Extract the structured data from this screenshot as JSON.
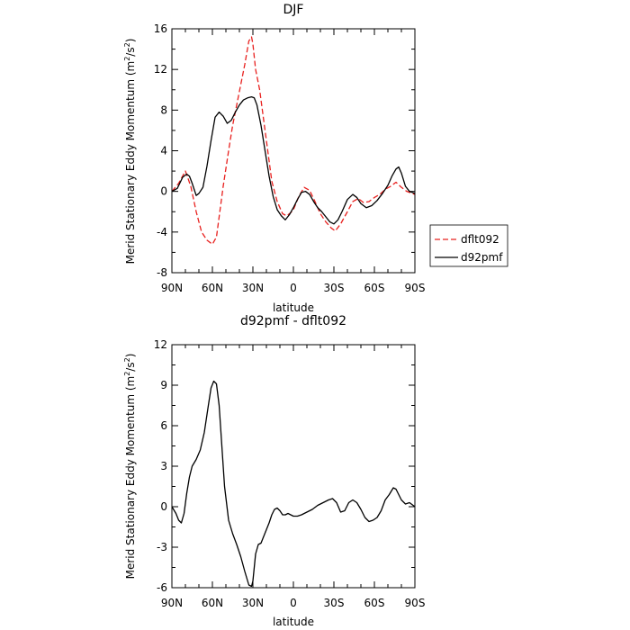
{
  "chart_data": [
    {
      "type": "line",
      "title": "DJF",
      "xlabel": "latitude",
      "ylabel": "Merid Stationary Eddy Momentum (m²/s²)",
      "ylabel_text": "Merid Stationary Eddy Momentum",
      "ylabel_unit_open": "(m",
      "ylabel_unit_sup1": "2",
      "ylabel_unit_mid": "/s",
      "ylabel_unit_sup2": "2",
      "ylabel_unit_close": ")",
      "xlim": [
        90,
        -90
      ],
      "ylim": [
        -8,
        16
      ],
      "xticks": [
        90,
        60,
        30,
        0,
        -30,
        -60,
        -90
      ],
      "xtick_labels": [
        "90N",
        "60N",
        "30N",
        "0",
        "30S",
        "60S",
        "90S"
      ],
      "yticks": [
        -8,
        -4,
        0,
        4,
        8,
        12,
        16
      ],
      "ytick_labels": [
        "-8",
        "-4",
        "0",
        "4",
        "8",
        "12",
        "16"
      ],
      "legend": "outside-right",
      "grid": false,
      "series": [
        {
          "name": "dflt092",
          "color": "#e8201e",
          "dash": "dashed",
          "x": [
            90,
            85,
            80,
            76,
            72,
            68,
            64,
            60,
            57,
            55,
            52,
            48,
            45,
            42,
            39,
            36,
            33,
            31,
            30,
            28,
            25,
            22,
            19,
            16,
            12,
            8,
            5,
            2,
            0,
            -4,
            -8,
            -12,
            -16,
            -20,
            -24,
            -28,
            -31,
            -35,
            -40,
            -44,
            -48,
            -52,
            -56,
            -60,
            -64,
            -68,
            -72,
            -76,
            -80,
            -84,
            -88,
            -90
          ],
          "y": [
            0,
            0.8,
            2,
            0.5,
            -2,
            -4,
            -4.8,
            -5.2,
            -4.5,
            -2.5,
            0.5,
            4,
            6.5,
            8.5,
            10.5,
            12.5,
            14.8,
            15.2,
            14.5,
            12,
            10,
            7,
            4,
            1,
            -1,
            -2.2,
            -2.4,
            -2.1,
            -1.8,
            -0.5,
            0.4,
            0.1,
            -1,
            -2.2,
            -3,
            -3.6,
            -3.9,
            -3.2,
            -2,
            -1,
            -0.7,
            -1.1,
            -1,
            -0.6,
            -0.3,
            0.2,
            0.5,
            0.9,
            0.4,
            0,
            -0.2,
            -0.3
          ]
        },
        {
          "name": "d92pmf",
          "color": "#000000",
          "dash": "solid",
          "x": [
            90,
            86,
            82,
            79,
            77,
            75,
            72,
            70,
            67,
            64,
            61,
            58,
            55,
            52,
            49,
            46,
            43,
            40,
            37,
            34,
            31,
            29,
            27,
            24,
            21,
            18,
            15,
            12,
            9,
            6,
            3,
            0,
            -3,
            -6,
            -9,
            -12,
            -15,
            -18,
            -21,
            -24,
            -27,
            -30,
            -33,
            -36,
            -40,
            -44,
            -47,
            -50,
            -54,
            -58,
            -62,
            -66,
            -70,
            -73,
            -76,
            -78,
            -80,
            -83,
            -86,
            -90
          ],
          "y": [
            0,
            0.3,
            1.4,
            1.7,
            1.5,
            0.8,
            -0.4,
            -0.2,
            0.4,
            2.5,
            5,
            7.3,
            7.8,
            7.4,
            6.7,
            7,
            7.8,
            8.5,
            9,
            9.2,
            9.3,
            9.2,
            8.5,
            6.5,
            4,
            1.5,
            -0.5,
            -1.8,
            -2.4,
            -2.8,
            -2.3,
            -1.6,
            -0.8,
            -0.1,
            0,
            -0.3,
            -1,
            -1.6,
            -2,
            -2.5,
            -3,
            -3.2,
            -2.8,
            -2,
            -0.8,
            -0.3,
            -0.6,
            -1.2,
            -1.6,
            -1.4,
            -0.9,
            -0.2,
            0.6,
            1.5,
            2.2,
            2.4,
            1.8,
            0.5,
            0,
            -0.2
          ]
        }
      ]
    },
    {
      "type": "line",
      "title": "d92pmf - dflt092",
      "xlabel": "latitude",
      "ylabel": "Merid Stationary Eddy Momentum (m²/s²)",
      "ylabel_text": "Merid Stationary Eddy Momentum",
      "ylabel_unit_open": "(m",
      "ylabel_unit_sup1": "2",
      "ylabel_unit_mid": "/s",
      "ylabel_unit_sup2": "2",
      "ylabel_unit_close": ")",
      "xlim": [
        90,
        -90
      ],
      "ylim": [
        -6,
        12
      ],
      "xticks": [
        90,
        60,
        30,
        0,
        -30,
        -60,
        -90
      ],
      "xtick_labels": [
        "90N",
        "60N",
        "30N",
        "0",
        "30S",
        "60S",
        "90S"
      ],
      "yticks": [
        -6,
        -3,
        0,
        3,
        6,
        9,
        12
      ],
      "ytick_labels": [
        "-6",
        "-3",
        "0",
        "3",
        "6",
        "9",
        "12"
      ],
      "grid": false,
      "series": [
        {
          "name": "",
          "color": "#000000",
          "dash": "solid",
          "x": [
            90,
            87,
            85,
            83,
            81,
            79,
            77,
            75,
            72,
            69,
            66,
            63,
            61,
            59,
            57,
            55,
            53,
            51,
            48,
            45,
            42,
            39,
            36,
            33,
            31,
            30,
            28,
            26,
            24,
            22,
            20,
            18,
            16,
            14,
            12,
            10,
            8,
            6,
            4,
            2,
            0,
            -3,
            -6,
            -10,
            -14,
            -18,
            -22,
            -26,
            -29,
            -32,
            -35,
            -38,
            -41,
            -44,
            -47,
            -50,
            -53,
            -56,
            -59,
            -62,
            -65,
            -68,
            -71,
            -74,
            -76,
            -78,
            -80,
            -83,
            -86,
            -90
          ],
          "y": [
            0,
            -0.5,
            -1,
            -1.2,
            -0.5,
            1,
            2.2,
            3,
            3.5,
            4.2,
            5.5,
            7.5,
            8.8,
            9.3,
            9.1,
            7.5,
            4.5,
            1.5,
            -1,
            -2,
            -2.8,
            -3.7,
            -4.8,
            -5.8,
            -5.9,
            -5.5,
            -3.5,
            -2.8,
            -2.7,
            -2.2,
            -1.7,
            -1.2,
            -0.6,
            -0.2,
            -0.1,
            -0.3,
            -0.6,
            -0.6,
            -0.5,
            -0.6,
            -0.7,
            -0.7,
            -0.6,
            -0.4,
            -0.2,
            0.1,
            0.3,
            0.5,
            0.6,
            0.3,
            -0.4,
            -0.3,
            0.3,
            0.5,
            0.3,
            -0.2,
            -0.8,
            -1.1,
            -1,
            -0.8,
            -0.3,
            0.5,
            0.9,
            1.4,
            1.3,
            0.9,
            0.5,
            0.2,
            0.3,
            0
          ]
        }
      ]
    }
  ]
}
